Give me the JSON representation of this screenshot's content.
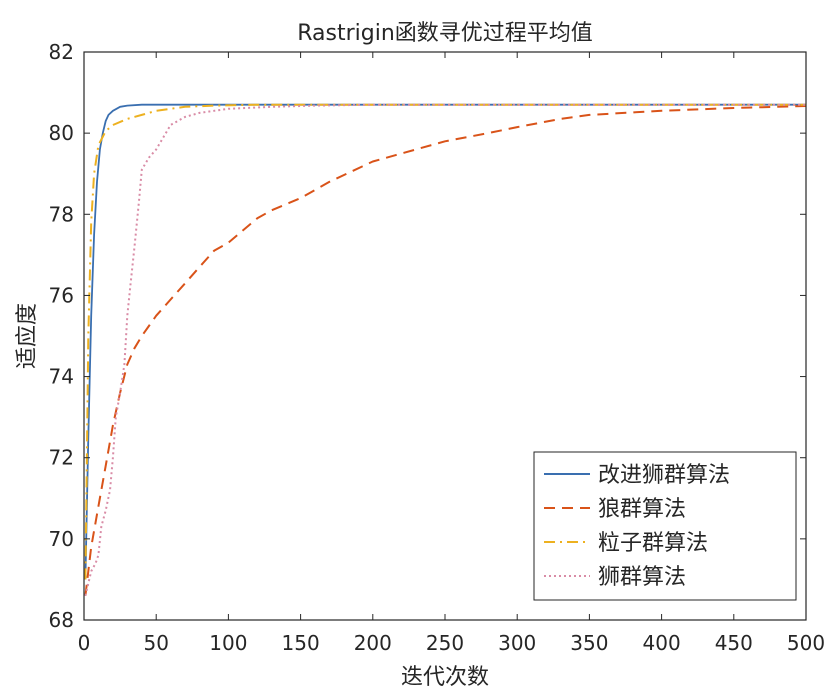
{
  "chart_data": {
    "type": "line",
    "title": "Rastrigin函数寻优过程平均值",
    "xlabel": "迭代次数",
    "ylabel": "适应度",
    "xlim": [
      0,
      500
    ],
    "ylim": [
      68,
      82
    ],
    "xticks": [
      0,
      50,
      100,
      150,
      200,
      250,
      300,
      350,
      400,
      450,
      500
    ],
    "yticks": [
      68,
      70,
      72,
      74,
      76,
      78,
      80,
      82
    ],
    "grid": false,
    "legend_position": "bottom-right",
    "series": [
      {
        "name": "改进狮群算法",
        "color": "#3a6fb0",
        "dash": "solid",
        "x": [
          1,
          3,
          5,
          7,
          9,
          11,
          13,
          15,
          17,
          20,
          25,
          30,
          40,
          60,
          80,
          100,
          200,
          300,
          400,
          500
        ],
        "y": [
          69.0,
          72.5,
          75.5,
          77.5,
          78.8,
          79.6,
          80.0,
          80.3,
          80.45,
          80.55,
          80.65,
          80.68,
          80.7,
          80.7,
          80.7,
          80.7,
          80.7,
          80.7,
          80.7,
          80.7
        ]
      },
      {
        "name": "狼群算法",
        "color": "#d95319",
        "dash": "dashed",
        "x": [
          1,
          5,
          10,
          15,
          20,
          25,
          30,
          35,
          40,
          50,
          60,
          70,
          80,
          90,
          100,
          110,
          120,
          130,
          150,
          170,
          200,
          230,
          250,
          280,
          300,
          330,
          350,
          400,
          450,
          500
        ],
        "y": [
          68.6,
          69.8,
          70.8,
          71.8,
          72.8,
          73.6,
          74.3,
          74.7,
          75.0,
          75.5,
          75.9,
          76.3,
          76.7,
          77.1,
          77.3,
          77.6,
          77.9,
          78.1,
          78.4,
          78.8,
          79.3,
          79.6,
          79.8,
          80.0,
          80.15,
          80.35,
          80.45,
          80.55,
          80.62,
          80.67
        ]
      },
      {
        "name": "粒子群算法",
        "color": "#edb120",
        "dash": "dashdot",
        "x": [
          1,
          2,
          3,
          5,
          7,
          10,
          15,
          20,
          30,
          40,
          50,
          70,
          90,
          120,
          150,
          200,
          300,
          400,
          500
        ],
        "y": [
          69.0,
          72.0,
          75.0,
          77.8,
          79.0,
          79.7,
          80.05,
          80.2,
          80.35,
          80.45,
          80.55,
          80.65,
          80.68,
          80.7,
          80.7,
          80.7,
          80.7,
          80.7,
          80.7
        ]
      },
      {
        "name": "狮群算法",
        "color": "#d98ca6",
        "dash": "dotted",
        "x": [
          1,
          5,
          8,
          10,
          12,
          15,
          18,
          20,
          22,
          25,
          28,
          30,
          32,
          35,
          38,
          40,
          45,
          50,
          55,
          60,
          70,
          80,
          100,
          130,
          160,
          200,
          300,
          400,
          500
        ],
        "y": [
          68.6,
          69.2,
          69.4,
          69.6,
          70.3,
          70.7,
          71.2,
          72.0,
          73.0,
          73.6,
          74.3,
          75.5,
          76.2,
          77.2,
          78.3,
          79.1,
          79.4,
          79.6,
          79.9,
          80.2,
          80.4,
          80.5,
          80.6,
          80.65,
          80.68,
          80.7,
          80.7,
          80.7,
          80.7
        ]
      }
    ]
  }
}
